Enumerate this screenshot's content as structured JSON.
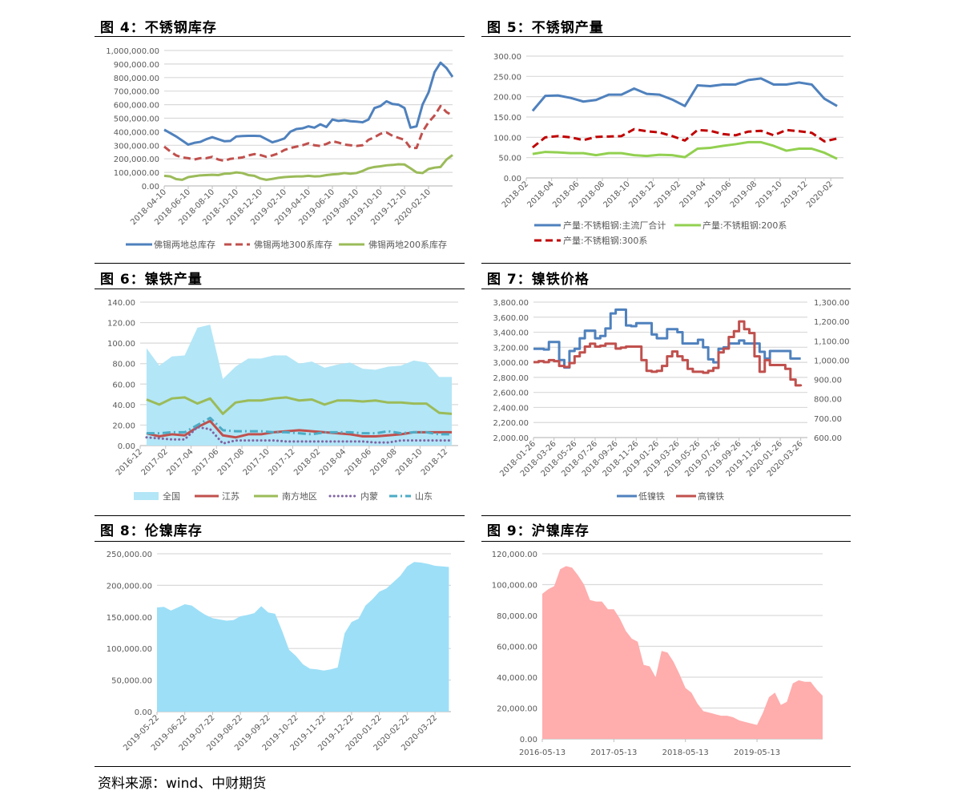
{
  "titles": {
    "fig4": "图 4：不锈钢库存",
    "fig5": "图 5：不锈钢产量",
    "fig6": "图 6：镍铁产量",
    "fig7": "图 7：镍铁价格",
    "fig8": "图 8：伦镍库存",
    "fig9": "图 9：沪镍库存"
  },
  "source": "资料来源：wind、中财期货",
  "chart_data": [
    {
      "id": "fig4",
      "type": "line",
      "ylim": [
        0,
        1000000
      ],
      "y_ticks": [
        "0.00",
        "100,000.00",
        "200,000.00",
        "300,000.00",
        "400,000.00",
        "500,000.00",
        "600,000.00",
        "700,000.00",
        "800,000.00",
        "900,000.00",
        "1,000,000.00"
      ],
      "x_ticks": [
        "2018-04-10",
        "2018-06-10",
        "2018-08-10",
        "2018-10-10",
        "2018-12-10",
        "2019-02-10",
        "2019-04-10",
        "2019-06-10",
        "2019-08-10",
        "2019-10-10",
        "2019-12-10",
        "2020-02-10"
      ],
      "x_note": "semi-monthly samples from 2018-04-10",
      "legend": "bottom",
      "grid": true,
      "series": [
        {
          "name": "佛锡两地总库存",
          "color": "#4f81bd",
          "style": "solid",
          "values": [
            415000,
            390000,
            365000,
            335000,
            305000,
            318000,
            325000,
            345000,
            360000,
            345000,
            330000,
            332000,
            365000,
            368000,
            370000,
            370000,
            368000,
            345000,
            322000,
            335000,
            350000,
            400000,
            420000,
            425000,
            440000,
            430000,
            455000,
            435000,
            490000,
            480000,
            485000,
            478000,
            475000,
            470000,
            490000,
            575000,
            590000,
            625000,
            605000,
            600000,
            575000,
            430000,
            440000,
            600000,
            690000,
            840000,
            910000,
            870000,
            805000
          ]
        },
        {
          "name": "佛锡两地300系库存",
          "color": "#c0504d",
          "style": "dash",
          "values": [
            290000,
            255000,
            225000,
            210000,
            205000,
            195000,
            205000,
            205000,
            215000,
            195000,
            185000,
            200000,
            205000,
            210000,
            225000,
            235000,
            228000,
            215000,
            225000,
            240000,
            265000,
            280000,
            290000,
            300000,
            315000,
            300000,
            295000,
            310000,
            330000,
            320000,
            305000,
            300000,
            295000,
            300000,
            340000,
            360000,
            385000,
            395000,
            370000,
            355000,
            340000,
            280000,
            280000,
            400000,
            470000,
            520000,
            590000,
            545000,
            520000
          ]
        },
        {
          "name": "佛锡两地200系库存",
          "color": "#9bbb59",
          "style": "solid",
          "values": [
            75000,
            70000,
            50000,
            45000,
            65000,
            72000,
            78000,
            80000,
            82000,
            80000,
            90000,
            92000,
            100000,
            95000,
            80000,
            75000,
            55000,
            45000,
            52000,
            60000,
            65000,
            68000,
            70000,
            70000,
            75000,
            70000,
            72000,
            80000,
            85000,
            88000,
            95000,
            90000,
            95000,
            110000,
            130000,
            140000,
            145000,
            152000,
            155000,
            160000,
            158000,
            130000,
            100000,
            95000,
            125000,
            135000,
            140000,
            195000,
            228000
          ]
        }
      ]
    },
    {
      "id": "fig5",
      "type": "line",
      "ylim": [
        0,
        300
      ],
      "y_ticks": [
        "0.00",
        "50.00",
        "100.00",
        "150.00",
        "200.00",
        "250.00",
        "300.00"
      ],
      "x_ticks": [
        "2018-02",
        "2018-04",
        "2018-06",
        "2018-08",
        "2018-10",
        "2018-12",
        "2019-02",
        "2019-04",
        "2019-06",
        "2019-08",
        "2019-10",
        "2019-12",
        "2020-02"
      ],
      "legend": "bottom",
      "grid": true,
      "series": [
        {
          "name": "产量:不锈粗钢:主流厂合计",
          "color": "#4f81bd",
          "style": "solid",
          "values": [
            165,
            202,
            203,
            197,
            188,
            192,
            205,
            205,
            220,
            207,
            205,
            193,
            177,
            228,
            226,
            230,
            230,
            241,
            245,
            230,
            230,
            235,
            230,
            195,
            177
          ]
        },
        {
          "name": "产量:不锈粗钢:200系",
          "color": "#92d050",
          "style": "solid",
          "values": [
            59,
            64,
            63,
            61,
            61,
            56,
            61,
            61,
            56,
            54,
            57,
            56,
            51,
            72,
            74,
            79,
            83,
            88,
            88,
            79,
            67,
            72,
            72,
            62,
            47
          ]
        },
        {
          "name": "产量:不锈粗钢:300系",
          "color": "#c00000",
          "style": "dash",
          "values": [
            75,
            100,
            103,
            100,
            93,
            101,
            102,
            103,
            120,
            115,
            112,
            103,
            92,
            118,
            116,
            108,
            105,
            114,
            116,
            105,
            118,
            115,
            111,
            90,
            97
          ]
        }
      ]
    },
    {
      "id": "fig6",
      "type": "area+line",
      "ylim": [
        0,
        140
      ],
      "y_ticks": [
        "0.00",
        "20.00",
        "40.00",
        "60.00",
        "80.00",
        "100.00",
        "120.00",
        "140.00"
      ],
      "x_ticks": [
        "2016-12",
        "2017-02",
        "2017-04",
        "2017-06",
        "2017-08",
        "2017-10",
        "2017-12",
        "2018-02",
        "2018-04",
        "2018-06",
        "2018-08",
        "2018-10",
        "2018-12"
      ],
      "legend": "bottom",
      "grid": true,
      "series": [
        {
          "name": "全国",
          "color": "#b3e6f7",
          "style": "area",
          "values": [
            95,
            78,
            87,
            88,
            115,
            118,
            65,
            77,
            85,
            85,
            88,
            88,
            80,
            82,
            76,
            79,
            81,
            75,
            74,
            77,
            78,
            83,
            81,
            67,
            67
          ]
        },
        {
          "name": "江苏",
          "color": "#c0504d",
          "style": "solid",
          "values": [
            12,
            9,
            11,
            10,
            18,
            24,
            10,
            8,
            11,
            11,
            13,
            14,
            15,
            14,
            13,
            12,
            11,
            9,
            9,
            10,
            11,
            13,
            13,
            13,
            13
          ]
        },
        {
          "name": "南方地区",
          "color": "#9bbb59",
          "style": "solid",
          "values": [
            45,
            40,
            46,
            47,
            41,
            46,
            31,
            42,
            44,
            44,
            46,
            47,
            44,
            45,
            40,
            44,
            44,
            43,
            44,
            42,
            42,
            41,
            41,
            32,
            31
          ]
        },
        {
          "name": "内蒙",
          "color": "#8064a2",
          "style": "dot",
          "values": [
            8,
            7,
            6,
            6,
            18,
            16,
            2,
            5,
            5,
            5,
            5,
            4,
            4,
            4,
            4,
            4,
            4,
            4,
            3,
            3,
            5,
            5,
            5,
            5,
            5
          ]
        },
        {
          "name": "山东",
          "color": "#4bacc6",
          "style": "dashdot",
          "values": [
            12,
            12,
            13,
            13,
            20,
            27,
            15,
            14,
            14,
            14,
            13,
            13,
            12,
            11,
            13,
            13,
            13,
            12,
            12,
            14,
            12,
            13,
            13,
            11,
            11
          ]
        }
      ]
    },
    {
      "id": "fig7",
      "type": "line",
      "ylim": [
        2000,
        3800
      ],
      "y2lim": [
        600,
        1300
      ],
      "y_ticks": [
        "2,000.00",
        "2,200.00",
        "2,400.00",
        "2,600.00",
        "2,800.00",
        "3,000.00",
        "3,200.00",
        "3,400.00",
        "3,600.00",
        "3,800.00"
      ],
      "y2_ticks": [
        "600.00",
        "700.00",
        "800.00",
        "900.00",
        "1,000.00",
        "1,100.00",
        "1,200.00",
        "1,300.00"
      ],
      "x_ticks": [
        "2018-01-26",
        "2018-03-26",
        "2018-05-26",
        "2018-07-26",
        "2018-09-26",
        "2018-11-26",
        "2019-01-26",
        "2019-03-26",
        "2019-05-26",
        "2019-07-26",
        "2019-09-26",
        "2019-11-26",
        "2020-01-26",
        "2020-03-26"
      ],
      "legend": "bottom",
      "grid": true,
      "series": [
        {
          "name": "低镍铁",
          "color": "#4f81bd",
          "style": "step",
          "axis": "left",
          "values": [
            3180,
            3180,
            3170,
            3270,
            3270,
            3030,
            2930,
            3150,
            3180,
            3320,
            3420,
            3420,
            3320,
            3350,
            3450,
            3650,
            3700,
            3700,
            3490,
            3480,
            3520,
            3520,
            3520,
            3370,
            3320,
            3320,
            3440,
            3440,
            3400,
            3250,
            3250,
            3250,
            3300,
            3200,
            3040,
            3000,
            3180,
            3200,
            3250,
            3250,
            3290,
            3250,
            3250,
            3250,
            3140,
            3050,
            3150,
            3150,
            3150,
            3150,
            3050,
            3050,
            3050
          ]
        },
        {
          "name": "高镍铁",
          "color": "#c0504d",
          "style": "step",
          "axis": "right",
          "values": [
            990,
            995,
            990,
            1000,
            995,
            970,
            965,
            985,
            1020,
            1040,
            1070,
            1085,
            1070,
            1075,
            1085,
            1085,
            1060,
            1065,
            1070,
            1070,
            1070,
            1000,
            945,
            940,
            945,
            970,
            1020,
            1045,
            1020,
            1000,
            955,
            940,
            940,
            935,
            945,
            960,
            1040,
            1060,
            1120,
            1150,
            1200,
            1160,
            1140,
            1020,
            940,
            1000,
            975,
            975,
            975,
            955,
            900,
            870,
            865
          ]
        }
      ]
    },
    {
      "id": "fig8",
      "type": "area",
      "ylim": [
        0,
        250000
      ],
      "y_ticks": [
        "0.00",
        "50,000.00",
        "100,000.00",
        "150,000.00",
        "200,000.00",
        "250,000.00"
      ],
      "x_ticks": [
        "2019-05-22",
        "2019-06-22",
        "2019-07-22",
        "2019-08-22",
        "2019-09-22",
        "2019-10-22",
        "2019-11-22",
        "2019-12-22",
        "2020-01-22",
        "2020-02-22",
        "2020-03-22"
      ],
      "grid": true,
      "series": [
        {
          "color": "#9ddff7",
          "style": "area",
          "values": [
            165000,
            166000,
            160000,
            165000,
            170000,
            168000,
            160000,
            153000,
            148000,
            146000,
            144000,
            145000,
            151000,
            153000,
            156000,
            167000,
            157000,
            155000,
            128000,
            98000,
            88000,
            75000,
            68000,
            67000,
            65000,
            67000,
            70000,
            124000,
            142000,
            147000,
            168000,
            178000,
            190000,
            195000,
            205000,
            215000,
            230000,
            237000,
            236000,
            234000,
            231000,
            230000,
            229000
          ]
        }
      ]
    },
    {
      "id": "fig9",
      "type": "area",
      "ylim": [
        0,
        120000
      ],
      "y_ticks": [
        "0.00",
        "20,000.00",
        "40,000.00",
        "60,000.00",
        "80,000.00",
        "100,000.00",
        "120,000.00"
      ],
      "x_ticks": [
        "2016-05-13",
        "2017-05-13",
        "2018-05-13",
        "2019-05-13"
      ],
      "grid": true,
      "series": [
        {
          "color": "#ffadad",
          "style": "area",
          "values": [
            94000,
            97000,
            99000,
            110000,
            112000,
            111000,
            106000,
            100000,
            90000,
            89000,
            89000,
            84000,
            84000,
            78000,
            70000,
            65000,
            63000,
            48000,
            47000,
            40000,
            57000,
            56000,
            50000,
            42000,
            33000,
            30000,
            23000,
            18000,
            17000,
            16000,
            15000,
            15000,
            14000,
            12000,
            11000,
            10000,
            9000,
            17000,
            27000,
            30000,
            22000,
            24000,
            36000,
            38000,
            37000,
            37000,
            32000,
            28000
          ]
        }
      ]
    }
  ]
}
